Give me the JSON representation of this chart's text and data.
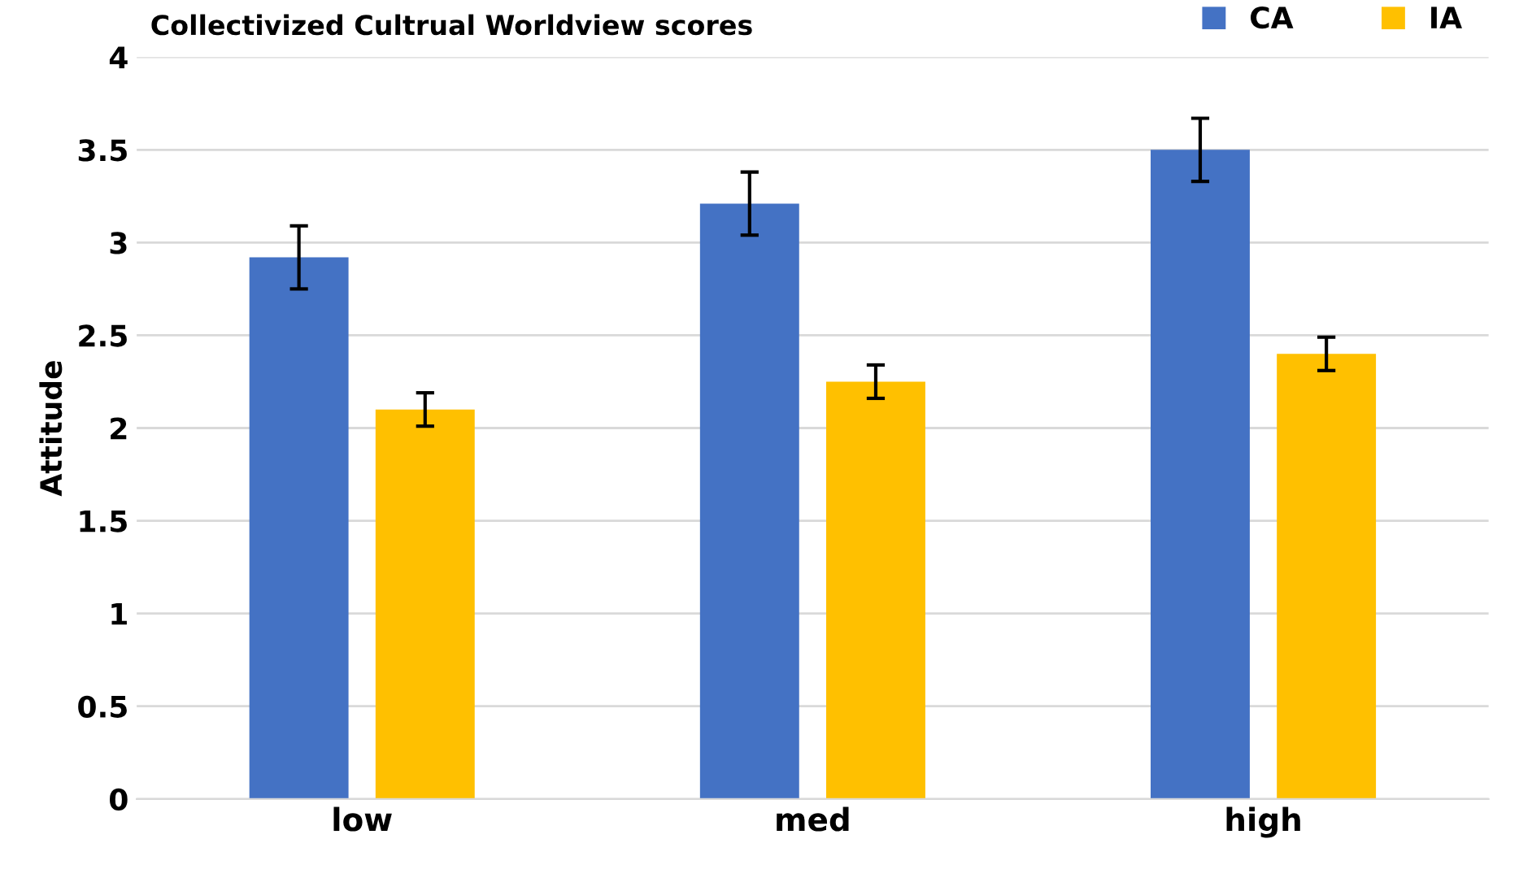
{
  "chart_data": {
    "type": "bar",
    "title": "Collectivized Cultrual Worldview scores",
    "ylabel": "Attitude",
    "categories": [
      "low",
      "med",
      "high"
    ],
    "series": [
      {
        "name": "CA",
        "color": "#4472c4",
        "values": [
          2.92,
          3.21,
          3.5
        ],
        "errors": [
          0.17,
          0.17,
          0.17
        ]
      },
      {
        "name": "IA",
        "color": "#ffc000",
        "values": [
          2.1,
          2.25,
          2.4
        ],
        "errors": [
          0.09,
          0.09,
          0.09
        ]
      }
    ],
    "ylim": [
      0,
      4
    ],
    "yticks": [
      0,
      0.5,
      1,
      1.5,
      2,
      2.5,
      3,
      3.5,
      4
    ],
    "grid": "y",
    "legend": "top right"
  }
}
